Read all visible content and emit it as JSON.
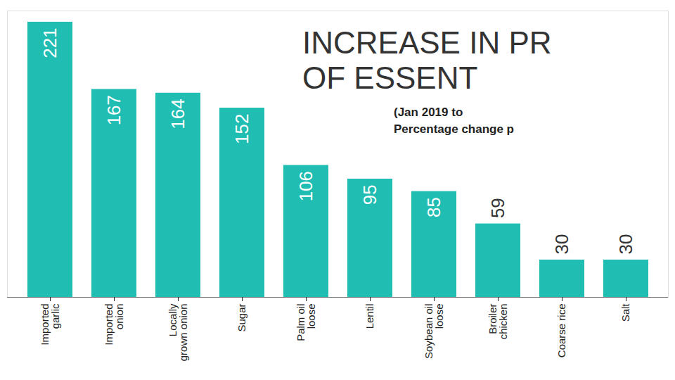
{
  "chart_data": {
    "type": "bar",
    "title": "INCREASE IN PR\nOF ESSENT",
    "subtitle": "(Jan 2019 to\nPercentage change p",
    "categories": [
      "Imported garlic",
      "Imported onion",
      "Locally grown onion",
      "Sugar",
      "Palm oil loose",
      "Lentil",
      "Soybean oil loose",
      "Broiler chicken",
      "Coarse rice",
      "Salt"
    ],
    "values": [
      221,
      167,
      164,
      152,
      106,
      95,
      85,
      59,
      30,
      30
    ],
    "color": "#1fbdb2",
    "ylim": [
      0,
      230
    ],
    "yticks": [],
    "data_labels": true,
    "tick_labels": "x"
  }
}
